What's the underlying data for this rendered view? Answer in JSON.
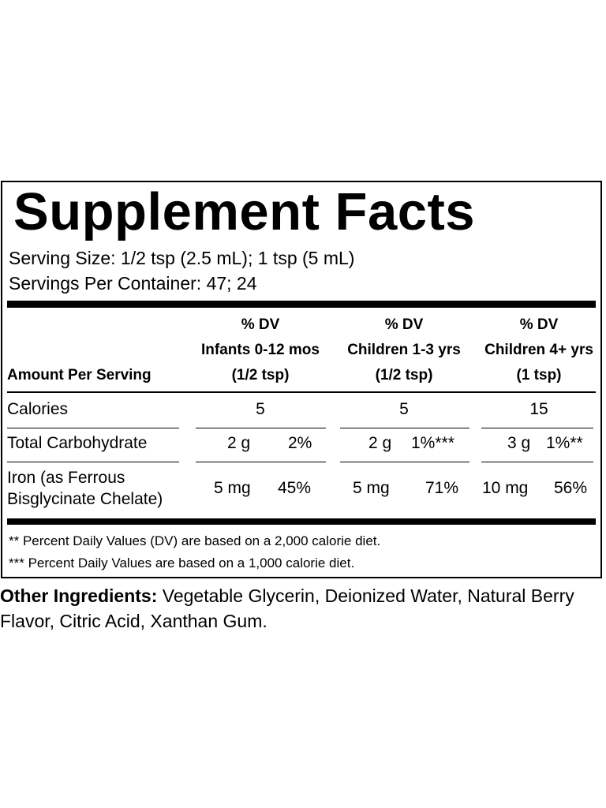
{
  "label": {
    "title": "Supplement Facts",
    "serving_size": "Serving Size: 1/2 tsp (2.5 mL); 1 tsp (5 mL)",
    "servings_per_container": "Servings Per Container: 47; 24",
    "amount_header": "Amount Per Serving",
    "columns": [
      {
        "dv": "% DV",
        "group": "Infants  0-12 mos",
        "portion": "(1/2 tsp)"
      },
      {
        "dv": "%  DV",
        "group": "Children 1-3 yrs",
        "portion": "(1/2 tsp)"
      },
      {
        "dv": "%  DV",
        "group": "Children 4+ yrs",
        "portion": "(1 tsp)"
      }
    ],
    "rows": [
      {
        "name": "Calories",
        "cells": [
          {
            "amount": "5",
            "dv": ""
          },
          {
            "amount": "5",
            "dv": ""
          },
          {
            "amount": "15",
            "dv": ""
          }
        ]
      },
      {
        "name": "Total Carbohydrate",
        "cells": [
          {
            "amount": "2 g",
            "dv": "2%"
          },
          {
            "amount": "2 g",
            "dv": "1%***"
          },
          {
            "amount": "3 g",
            "dv": "1%**"
          }
        ]
      },
      {
        "name_line1": "Iron (as Ferrous",
        "name_line2": "Bisglycinate Chelate)",
        "cells": [
          {
            "amount": "5 mg",
            "dv": "45%"
          },
          {
            "amount": "5 mg",
            "dv": "71%"
          },
          {
            "amount": "10 mg",
            "dv": "56%"
          }
        ]
      }
    ],
    "footnotes": [
      "** Percent Daily Values (DV) are based on a 2,000 calorie diet.",
      "*** Percent Daily Values are based on a 1,000 calorie diet."
    ]
  },
  "other_ingredients": {
    "label": "Other Ingredients:",
    "text": " Vegetable Glycerin, Deionized Water, Natural Berry Flavor, Citric Acid, Xanthan Gum."
  }
}
